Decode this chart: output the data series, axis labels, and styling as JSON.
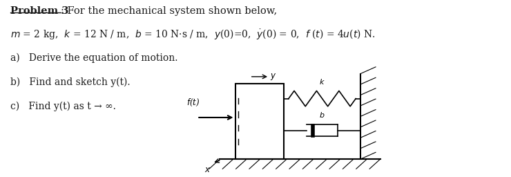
{
  "bg": "#ffffff",
  "text_color": "#1a1a1a",
  "fig_width": 7.4,
  "fig_height": 2.56,
  "dpi": 100,
  "title_bold": "Problem 3",
  "title_rest": ": For the mechanical system shown below,",
  "line2": "m = 2 kg, k = 12 N / m, b = 10 N·s / m, y(0)=0, ẏ(0) = 0, f (t) = 4u(t) N .",
  "item_a": "a)   Derive the equation of motion.",
  "item_b": "b)   Find and sketch y(t).",
  "item_c": "c)   Find y(t) as t → ∞."
}
